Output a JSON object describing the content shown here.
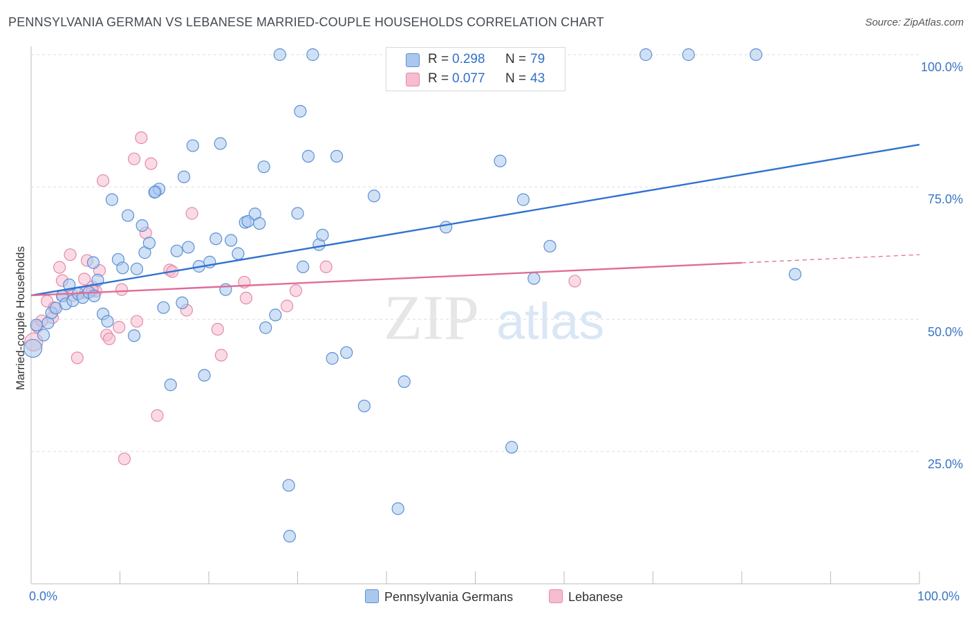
{
  "title": "PENNSYLVANIA GERMAN VS LEBANESE MARRIED-COUPLE HOUSEHOLDS CORRELATION CHART",
  "source": "Source: ZipAtlas.com",
  "colors": {
    "blue_fill": "#aac8ee",
    "blue_stroke": "#5b8fd4",
    "blue_line": "#2f72cf",
    "pink_fill": "#f6bcd0",
    "pink_stroke": "#e38aa9",
    "pink_line": "#e06c98",
    "tick_label": "#3a75c4",
    "grid": "#dedede"
  },
  "legend": {
    "rows": [
      {
        "r_label": "R =",
        "r_value": "0.298",
        "n_label": "N =",
        "n_value": "79",
        "series": "blue"
      },
      {
        "r_label": "R =",
        "r_value": "0.077",
        "n_label": "N =",
        "n_value": "43",
        "series": "pink"
      }
    ]
  },
  "chart_data": {
    "type": "scatter",
    "title": "PENNSYLVANIA GERMAN VS LEBANESE MARRIED-COUPLE HOUSEHOLDS CORRELATION CHART",
    "xlabel": "",
    "ylabel": "Married-couple Households",
    "xlim": [
      0,
      100
    ],
    "ylim": [
      0,
      100
    ],
    "x_tick_labels": [
      "0.0%",
      "100.0%"
    ],
    "y_tick_labels": [
      "25.0%",
      "50.0%",
      "75.0%",
      "100.0%"
    ],
    "y_ticks": [
      25,
      50,
      75,
      100
    ],
    "grid": true,
    "legend_position": "top-center",
    "watermark": "ZIPatlas",
    "series": [
      {
        "name": "Pennsylvania Germans",
        "color": "blue",
        "trend": {
          "x0": 0,
          "y0": 54.5,
          "x1": 100,
          "y1": 83.0
        },
        "points": [
          [
            0.2,
            44.5
          ],
          [
            0.6,
            48.9
          ],
          [
            1.4,
            47.0
          ],
          [
            1.9,
            49.3
          ],
          [
            2.3,
            51.2
          ],
          [
            2.8,
            52.1
          ],
          [
            3.5,
            54.4
          ],
          [
            3.9,
            52.9
          ],
          [
            4.3,
            56.5
          ],
          [
            4.7,
            53.5
          ],
          [
            5.3,
            54.8
          ],
          [
            5.8,
            54.1
          ],
          [
            6.5,
            55.1
          ],
          [
            7.0,
            60.7
          ],
          [
            7.5,
            57.4
          ],
          [
            8.1,
            51.0
          ],
          [
            8.6,
            49.6
          ],
          [
            9.1,
            72.6
          ],
          [
            9.8,
            61.3
          ],
          [
            10.3,
            59.7
          ],
          [
            10.9,
            69.6
          ],
          [
            11.6,
            46.9
          ],
          [
            11.9,
            59.5
          ],
          [
            12.5,
            67.7
          ],
          [
            12.8,
            62.6
          ],
          [
            13.3,
            64.4
          ],
          [
            14.0,
            74.1
          ],
          [
            14.4,
            74.6
          ],
          [
            14.9,
            52.2
          ],
          [
            15.7,
            37.6
          ],
          [
            16.4,
            62.9
          ],
          [
            17.0,
            53.1
          ],
          [
            17.2,
            76.9
          ],
          [
            17.7,
            63.6
          ],
          [
            18.2,
            82.8
          ],
          [
            18.9,
            60.0
          ],
          [
            19.5,
            39.4
          ],
          [
            20.1,
            60.8
          ],
          [
            20.8,
            65.2
          ],
          [
            21.3,
            83.2
          ],
          [
            21.9,
            55.6
          ],
          [
            22.5,
            64.9
          ],
          [
            23.3,
            62.4
          ],
          [
            24.1,
            68.3
          ],
          [
            24.4,
            68.5
          ],
          [
            25.2,
            69.9
          ],
          [
            25.7,
            68.1
          ],
          [
            26.2,
            78.8
          ],
          [
            26.4,
            48.4
          ],
          [
            27.5,
            50.8
          ],
          [
            28.0,
            100.0
          ],
          [
            29.0,
            18.6
          ],
          [
            29.1,
            9.0
          ],
          [
            30.0,
            70.0
          ],
          [
            30.3,
            89.3
          ],
          [
            30.6,
            59.9
          ],
          [
            31.2,
            80.8
          ],
          [
            31.7,
            100.0
          ],
          [
            32.4,
            64.1
          ],
          [
            32.8,
            65.9
          ],
          [
            33.9,
            42.6
          ],
          [
            34.4,
            80.8
          ],
          [
            35.5,
            43.7
          ],
          [
            37.5,
            33.6
          ],
          [
            38.6,
            73.3
          ],
          [
            41.3,
            14.2
          ],
          [
            42.0,
            38.2
          ],
          [
            46.7,
            67.4
          ],
          [
            52.8,
            79.9
          ],
          [
            54.1,
            25.8
          ],
          [
            55.4,
            72.6
          ],
          [
            56.6,
            57.7
          ],
          [
            58.4,
            63.8
          ],
          [
            69.2,
            100.0
          ],
          [
            74.0,
            100.0
          ],
          [
            81.6,
            100.0
          ],
          [
            86.0,
            58.5
          ],
          [
            13.9,
            74.0
          ],
          [
            7.1,
            54.4
          ]
        ]
      },
      {
        "name": "Lebanese",
        "color": "pink",
        "trend": {
          "x0": 0,
          "y0": 54.5,
          "x1": 100,
          "y1": 62.2,
          "solid_until_x": 80
        },
        "points": [
          [
            0.3,
            45.7
          ],
          [
            0.7,
            48.6
          ],
          [
            1.2,
            49.7
          ],
          [
            1.8,
            53.4
          ],
          [
            2.4,
            50.3
          ],
          [
            2.6,
            52.2
          ],
          [
            3.2,
            59.8
          ],
          [
            3.5,
            57.3
          ],
          [
            4.4,
            62.2
          ],
          [
            4.7,
            54.5
          ],
          [
            5.2,
            42.7
          ],
          [
            6.0,
            57.6
          ],
          [
            6.3,
            61.1
          ],
          [
            6.9,
            56.1
          ],
          [
            7.3,
            55.3
          ],
          [
            7.7,
            59.2
          ],
          [
            8.1,
            76.2
          ],
          [
            8.5,
            47.0
          ],
          [
            8.8,
            46.3
          ],
          [
            9.9,
            48.5
          ],
          [
            10.2,
            55.6
          ],
          [
            10.5,
            23.6
          ],
          [
            11.6,
            80.3
          ],
          [
            11.9,
            49.6
          ],
          [
            12.4,
            84.3
          ],
          [
            12.9,
            66.3
          ],
          [
            13.5,
            79.4
          ],
          [
            14.2,
            31.8
          ],
          [
            15.6,
            59.3
          ],
          [
            15.9,
            59.0
          ],
          [
            17.5,
            51.7
          ],
          [
            18.1,
            70.0
          ],
          [
            21.0,
            48.1
          ],
          [
            21.4,
            43.2
          ],
          [
            24.0,
            57.0
          ],
          [
            24.2,
            54.0
          ],
          [
            28.8,
            52.5
          ],
          [
            29.8,
            55.4
          ],
          [
            33.2,
            59.9
          ],
          [
            61.2,
            57.2
          ],
          [
            6.1,
            55.0
          ],
          [
            3.6,
            54.4
          ],
          [
            6.9,
            55.5
          ]
        ]
      }
    ]
  },
  "bottom_legend": {
    "items": [
      {
        "label": "Pennsylvania Germans",
        "series": "blue"
      },
      {
        "label": "Lebanese",
        "series": "pink"
      }
    ]
  }
}
